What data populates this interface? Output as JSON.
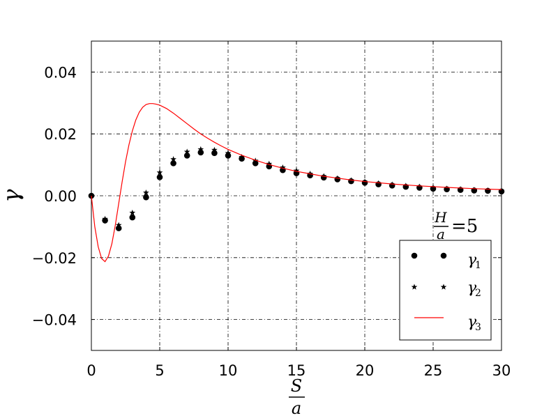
{
  "chart_data": {
    "type": "scatter",
    "xlabel": {
      "numerator": "S",
      "denominator": "a"
    },
    "ylabel": "γ",
    "xlim": [
      0,
      30
    ],
    "ylim": [
      -0.05,
      0.05
    ],
    "x_ticks": [
      0,
      5,
      10,
      15,
      20,
      25,
      30
    ],
    "x_tick_labels": [
      "0",
      "5",
      "10",
      "15",
      "20",
      "25",
      "30"
    ],
    "y_ticks": [
      -0.04,
      -0.02,
      0.0,
      0.02,
      0.04
    ],
    "y_tick_labels": [
      "−0.04",
      "−0.02",
      "0.00",
      "0.02",
      "0.04"
    ],
    "grid": true,
    "grid_style": "dash-dot",
    "legend_position": "bottom-right",
    "annotation": {
      "numerator": "H",
      "denominator": "a",
      "rest": "=5"
    },
    "series": [
      {
        "name": "γ",
        "subscript": "1",
        "marker": "circle",
        "color": "#000000",
        "x": [
          0,
          1,
          2,
          3,
          4,
          5,
          6,
          7,
          8,
          9,
          10,
          11,
          12,
          13,
          14,
          15,
          16,
          17,
          18,
          19,
          20,
          21,
          22,
          23,
          24,
          25,
          26,
          27,
          28,
          29,
          30
        ],
        "y": [
          0.0,
          -0.008,
          -0.0105,
          -0.007,
          -0.0005,
          0.006,
          0.0105,
          0.013,
          0.014,
          0.0138,
          0.013,
          0.012,
          0.0105,
          0.0095,
          0.0083,
          0.0073,
          0.0066,
          0.0059,
          0.0053,
          0.0047,
          0.0042,
          0.0037,
          0.0033,
          0.0029,
          0.0026,
          0.0023,
          0.0021,
          0.0019,
          0.0017,
          0.0016,
          0.0014
        ]
      },
      {
        "name": "γ",
        "subscript": "2",
        "marker": "star",
        "color": "#000000",
        "x": [
          0,
          1,
          2,
          3,
          4,
          5,
          6,
          7,
          8,
          9,
          10,
          11,
          12,
          13,
          14,
          15,
          16,
          17,
          18,
          19,
          20,
          21,
          22,
          23,
          24,
          25,
          26,
          27,
          28,
          29,
          30
        ],
        "y": [
          0.0,
          -0.0075,
          -0.0095,
          -0.0055,
          0.001,
          0.0075,
          0.0118,
          0.0142,
          0.015,
          0.0148,
          0.0138,
          0.0125,
          0.0113,
          0.0103,
          0.0091,
          0.0081,
          0.0071,
          0.0063,
          0.0056,
          0.005,
          0.0045,
          0.004,
          0.0036,
          0.0032,
          0.0029,
          0.0026,
          0.0023,
          0.0021,
          0.0019,
          0.0017,
          0.0015
        ]
      },
      {
        "name": "γ",
        "subscript": "3",
        "marker": "line",
        "color": "#ff0000",
        "x": [
          0,
          0.25,
          0.5,
          0.75,
          1,
          1.25,
          1.5,
          1.75,
          2,
          2.25,
          2.5,
          2.75,
          3,
          3.25,
          3.5,
          3.75,
          4,
          4.25,
          4.5,
          4.75,
          5,
          5.5,
          6,
          6.5,
          7,
          7.5,
          8,
          8.5,
          9,
          9.5,
          10,
          11,
          12,
          13,
          14,
          15,
          16,
          17,
          18,
          19,
          20,
          22,
          24,
          26,
          28,
          30
        ],
        "y": [
          0.0,
          -0.01,
          -0.0165,
          -0.0203,
          -0.0213,
          -0.0195,
          -0.0155,
          -0.0095,
          -0.0025,
          0.0045,
          0.011,
          0.0165,
          0.021,
          0.0245,
          0.027,
          0.0286,
          0.0295,
          0.0298,
          0.0298,
          0.0296,
          0.0293,
          0.0282,
          0.0267,
          0.025,
          0.0233,
          0.0216,
          0.02,
          0.0186,
          0.0173,
          0.0161,
          0.015,
          0.0131,
          0.0115,
          0.0101,
          0.0089,
          0.0079,
          0.0071,
          0.0063,
          0.0057,
          0.0051,
          0.0046,
          0.0038,
          0.0032,
          0.0027,
          0.0023,
          0.002
        ]
      }
    ]
  }
}
